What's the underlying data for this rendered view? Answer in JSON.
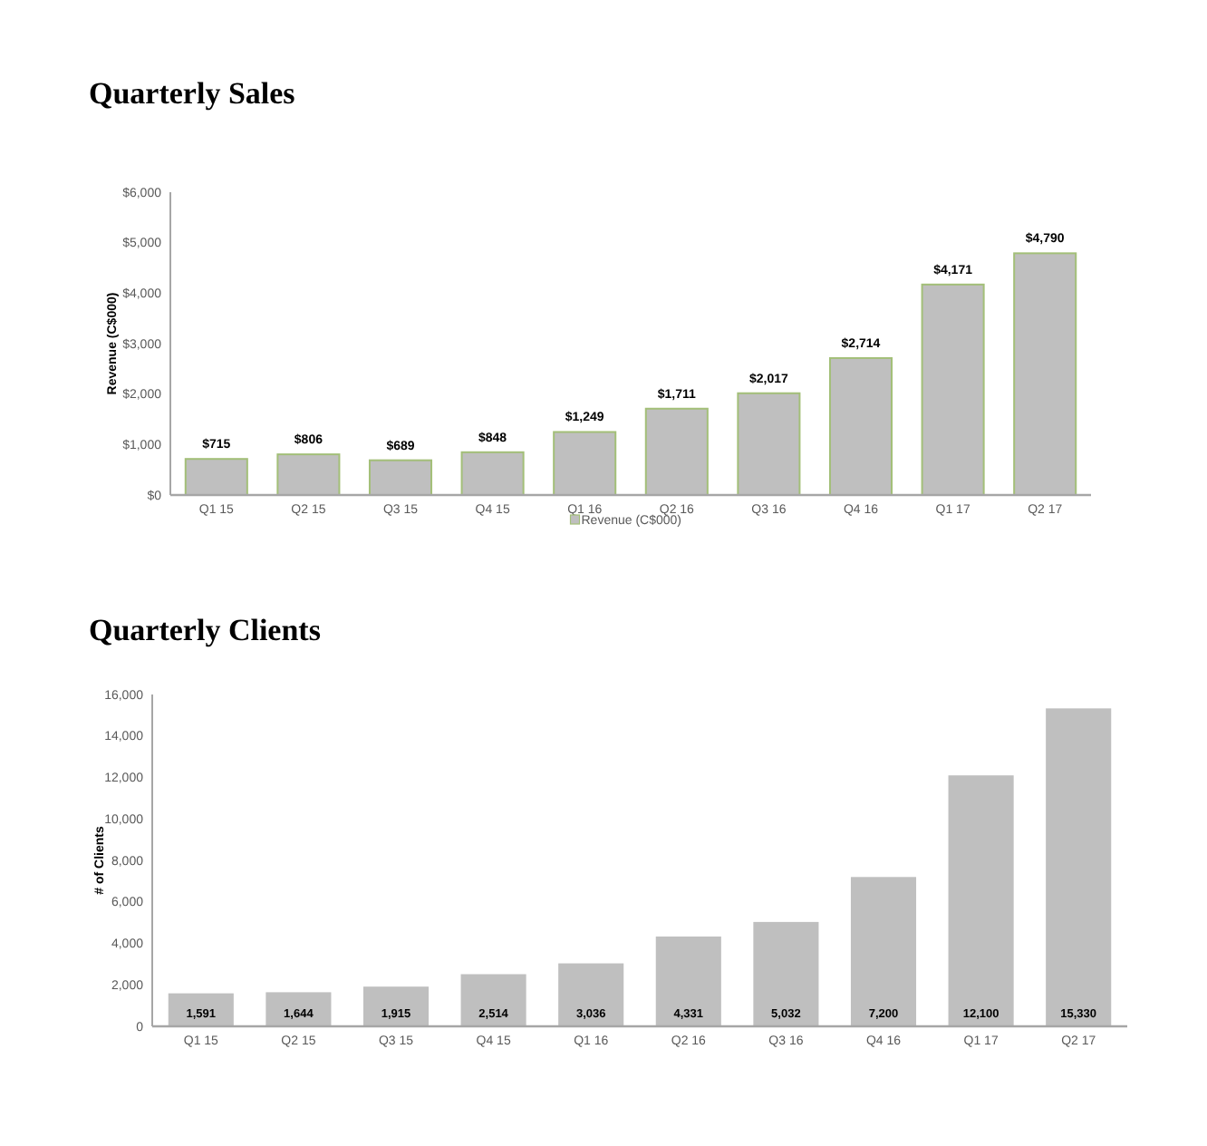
{
  "chart_data": [
    {
      "type": "bar",
      "title": "Quarterly Sales",
      "ylabel": "Revenue (C$000)",
      "categories": [
        "Q1 15",
        "Q2 15",
        "Q3 15",
        "Q4 15",
        "Q1 16",
        "Q2 16",
        "Q3 16",
        "Q4 16",
        "Q1 17",
        "Q2 17"
      ],
      "series": [
        {
          "name": "Revenue (C$000)",
          "color": "#bfbfbf",
          "values": [
            715,
            806,
            689,
            848,
            1249,
            1711,
            2017,
            2714,
            4171,
            4790
          ],
          "value_labels": [
            "$715",
            "$806",
            "$689",
            "$848",
            "$1,249",
            "$1,711",
            "$2,017",
            "$2,714",
            "$4,171",
            "$4,790"
          ]
        }
      ],
      "ylim": [
        0,
        6000
      ],
      "yticks": [
        {
          "value": 0,
          "label": "$0"
        },
        {
          "value": 1000,
          "label": "$1,000"
        },
        {
          "value": 2000,
          "label": "$2,000"
        },
        {
          "value": 3000,
          "label": "$3,000"
        },
        {
          "value": 4000,
          "label": "$4,000"
        },
        {
          "value": 5000,
          "label": "$5,000"
        },
        {
          "value": 6000,
          "label": "$6,000"
        }
      ],
      "legend": "bottom"
    },
    {
      "type": "bar",
      "title": "Quarterly Clients",
      "ylabel": "# of Clients",
      "categories": [
        "Q1 15",
        "Q2 15",
        "Q3 15",
        "Q4 15",
        "Q1 16",
        "Q2 16",
        "Q3 16",
        "Q4 16",
        "Q1 17",
        "Q2 17"
      ],
      "series": [
        {
          "color": "#bfbfbf",
          "values": [
            1591,
            1644,
            1915,
            2514,
            3036,
            4331,
            5032,
            7200,
            12100,
            15330
          ],
          "value_labels": [
            "1,591",
            "1,644",
            "1,915",
            "2,514",
            "3,036",
            "4,331",
            "5,032",
            "7,200",
            "12,100",
            "15,330"
          ]
        }
      ],
      "ylim": [
        0,
        16000
      ],
      "yticks": [
        {
          "value": 0,
          "label": "0"
        },
        {
          "value": 2000,
          "label": "2,000"
        },
        {
          "value": 4000,
          "label": "4,000"
        },
        {
          "value": 6000,
          "label": "6,000"
        },
        {
          "value": 8000,
          "label": "8,000"
        },
        {
          "value": 10000,
          "label": "10,000"
        },
        {
          "value": 12000,
          "label": "12,000"
        },
        {
          "value": 14000,
          "label": "14,000"
        },
        {
          "value": 16000,
          "label": "16,000"
        }
      ]
    }
  ]
}
